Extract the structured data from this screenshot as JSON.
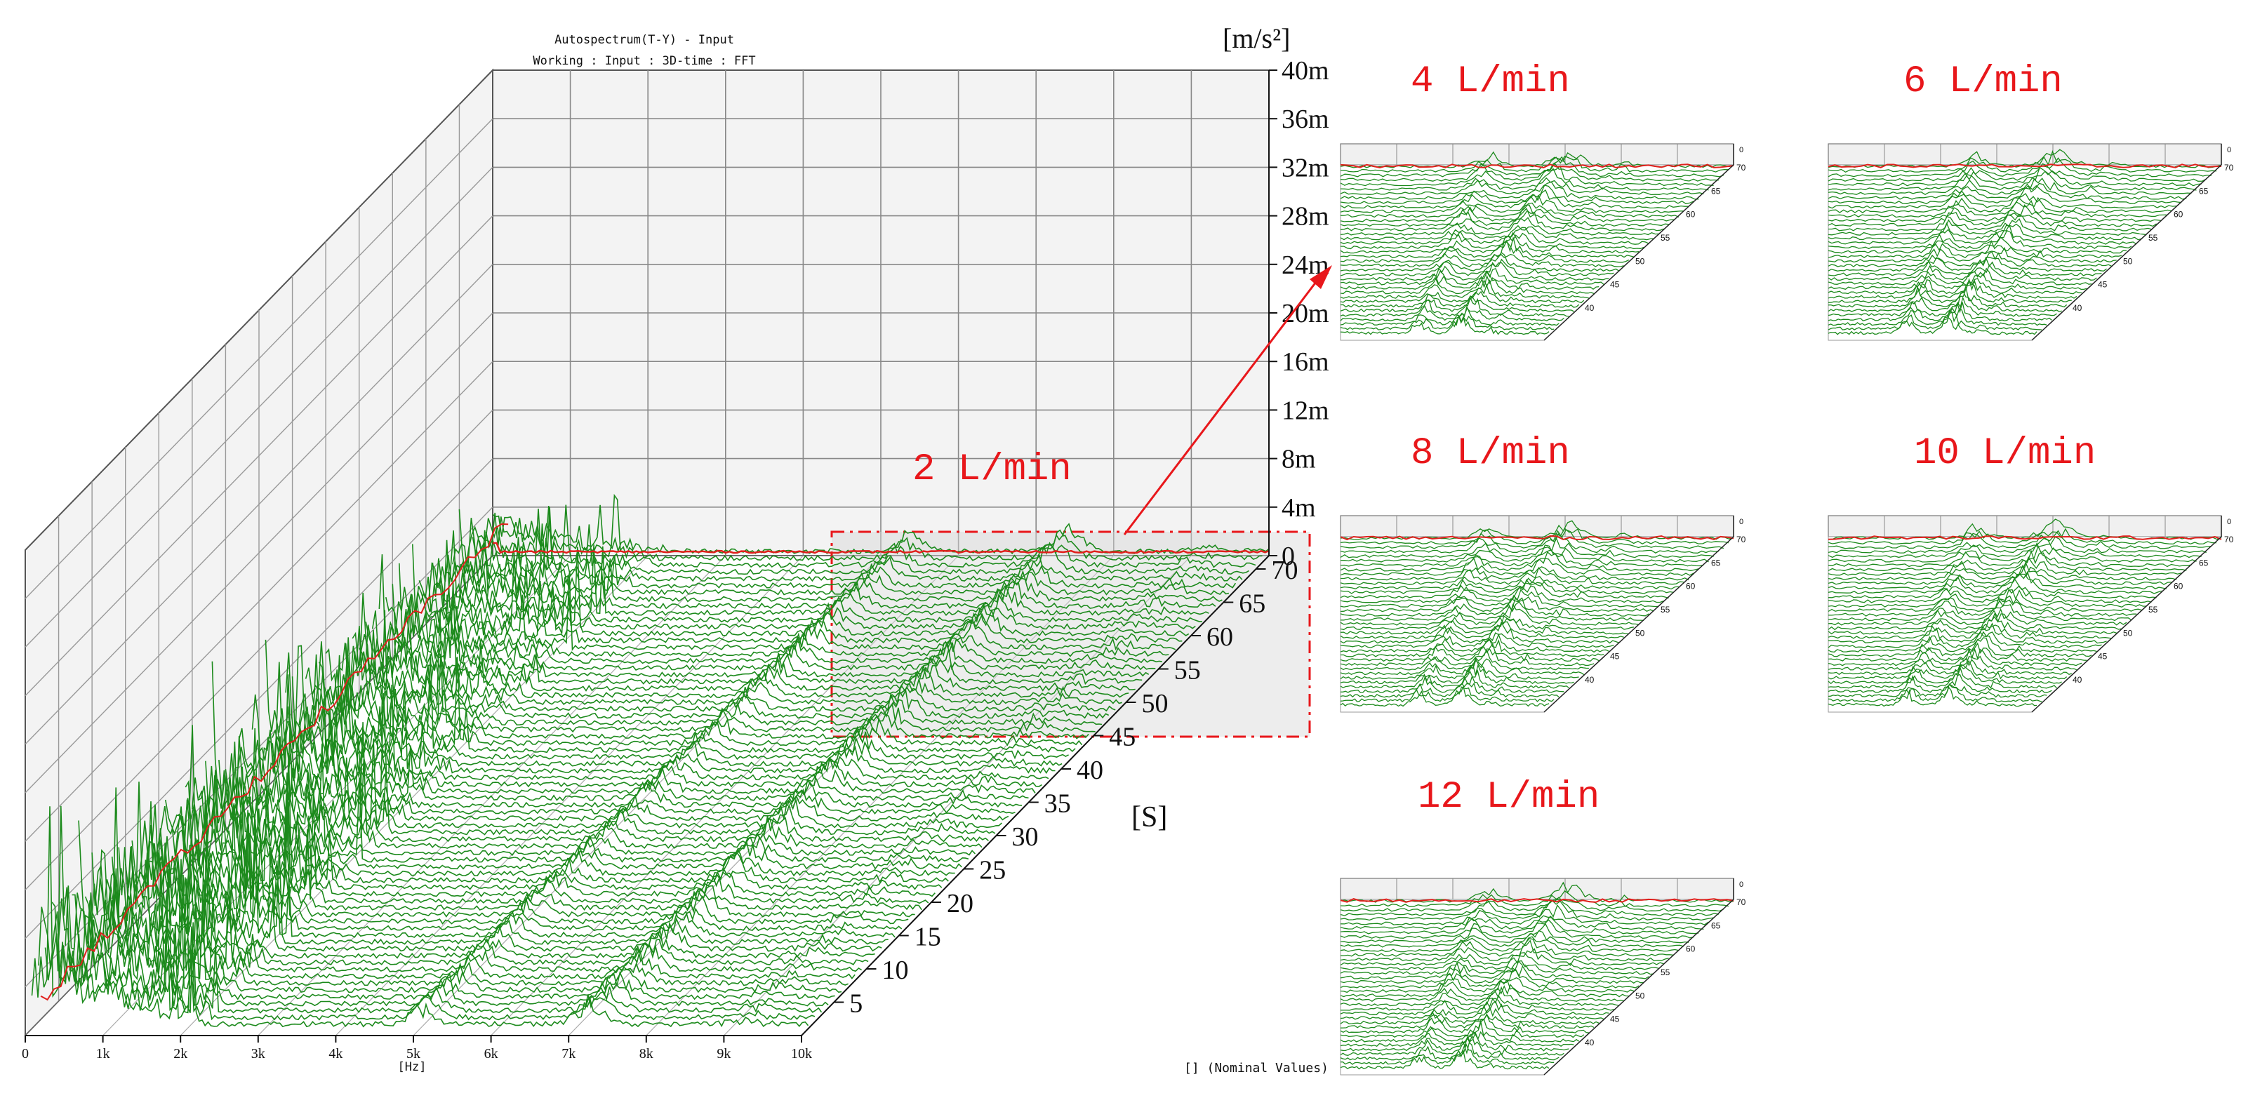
{
  "chart_data": {
    "type": "waterfall-3d",
    "title": "Autospectrum(T-Y) - Input",
    "subtitle": "Working : Input : 3D-time : FFT",
    "x_unit": "[Hz]",
    "x_ticks": [
      "0",
      "1k",
      "2k",
      "3k",
      "4k",
      "5k",
      "6k",
      "7k",
      "8k",
      "9k",
      "10k"
    ],
    "x_range": [
      0,
      10000
    ],
    "z_unit": "[m/s²]",
    "z_ticks": [
      "0",
      "4m",
      "8m",
      "12m",
      "16m",
      "20m",
      "24m",
      "28m",
      "32m",
      "36m",
      "40m"
    ],
    "z_range": [
      0,
      0.04
    ],
    "t_unit": "[S]",
    "t_ticks": [
      "5",
      "10",
      "15",
      "20",
      "25",
      "30",
      "35",
      "40",
      "45",
      "50",
      "55",
      "60",
      "65",
      "70"
    ],
    "t_range": [
      0,
      72
    ],
    "footnote": "[] (Nominal Values)",
    "main_label": "2 L/min",
    "series_colors": {
      "trace": "#1c8a1c",
      "average": "#e0201c",
      "annotation": "#e8171b"
    },
    "insets": [
      {
        "label": "4 L/min",
        "t_ticks": [
          "40",
          "45",
          "50",
          "55",
          "60",
          "65",
          "70"
        ],
        "z_top": "0"
      },
      {
        "label": "6 L/min",
        "t_ticks": [
          "40",
          "45",
          "50",
          "55",
          "60",
          "65",
          "70"
        ],
        "z_top": "0"
      },
      {
        "label": "8 L/min",
        "t_ticks": [
          "40",
          "45",
          "50",
          "55",
          "60",
          "65",
          "70"
        ],
        "z_top": "0"
      },
      {
        "label": "10 L/min",
        "t_ticks": [
          "40",
          "45",
          "50",
          "55",
          "60",
          "65",
          "70"
        ],
        "z_top": "0"
      },
      {
        "label": "12 L/min",
        "t_ticks": [
          "40",
          "45",
          "50",
          "55",
          "60",
          "65",
          "70"
        ],
        "z_top": "0"
      }
    ]
  }
}
